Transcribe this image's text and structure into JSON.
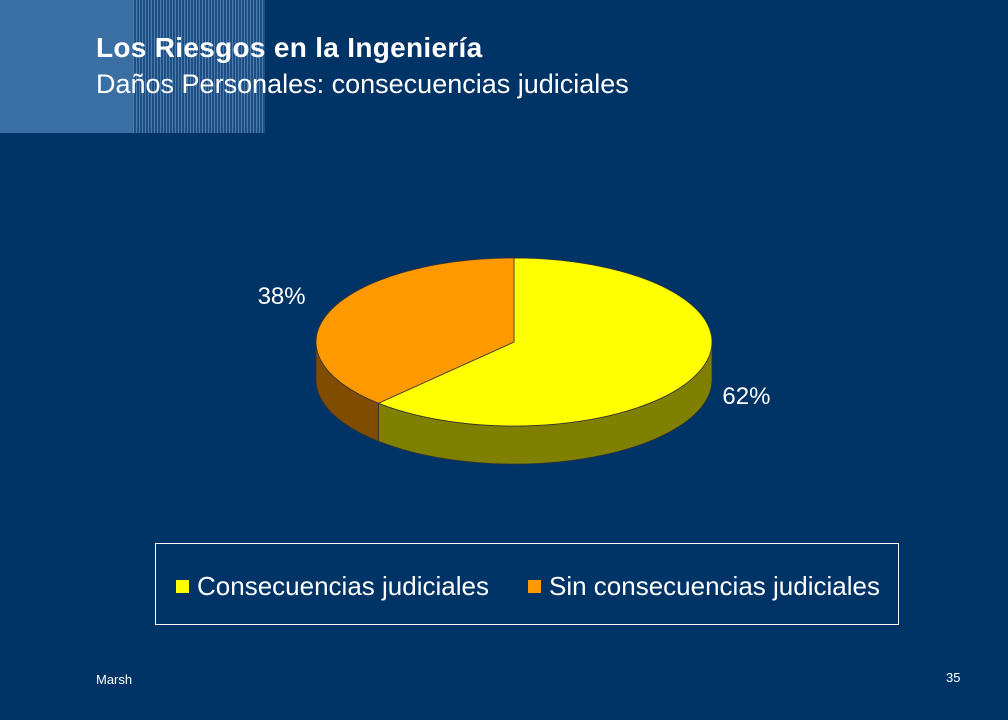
{
  "slide": {
    "title": "Los Riesgos en la Ingeniería",
    "subtitle": "Daños Personales: consecuencias judiciales",
    "footer_left": "Marsh",
    "page_number": "35"
  },
  "chart_data": {
    "type": "pie",
    "style": "3d",
    "categories": [
      "Consecuencias judiciales",
      "Sin consecuencias judiciales"
    ],
    "values": [
      62,
      38
    ],
    "data_labels": [
      "62%",
      "38%"
    ],
    "colors": [
      "#ffff00",
      "#ff9900"
    ],
    "legend_position": "bottom"
  },
  "colors": {
    "background": "#003366",
    "text": "#ffffff"
  }
}
